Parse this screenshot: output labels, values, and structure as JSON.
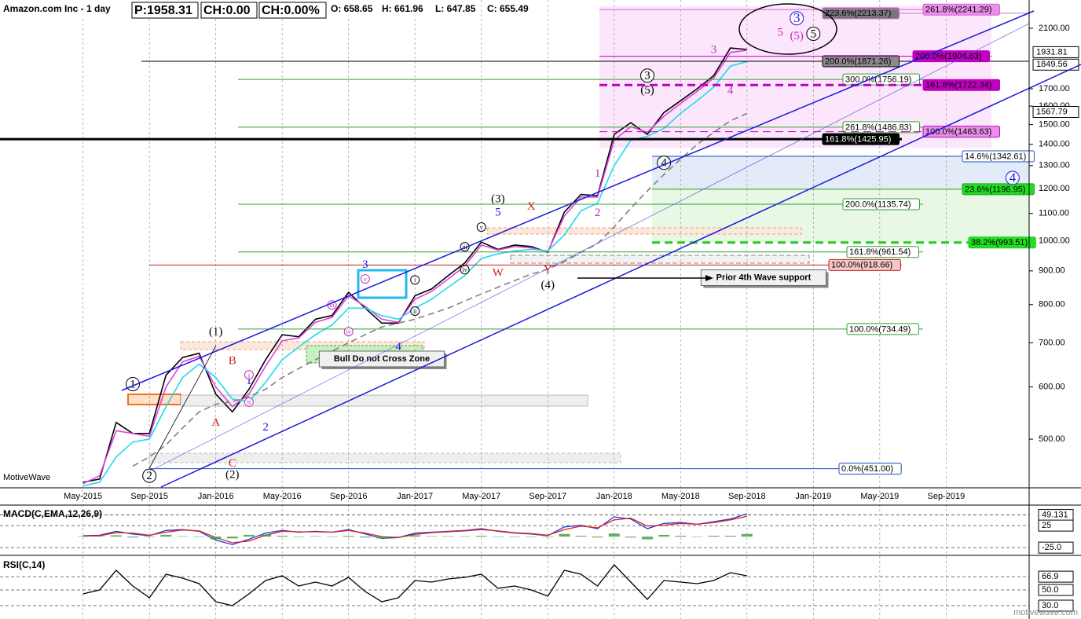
{
  "chart_data": [
    {
      "type": "line",
      "title": "Amazon.com Inc - 1 day",
      "price": "P:1958.31",
      "change": "CH:0.00",
      "change_pct": "CH:0.00%",
      "ohlc": [
        "O: 658.65",
        "H: 661.96",
        "L: 647.85",
        "C: 655.49"
      ],
      "watermark": "MotiveWave",
      "log": true,
      "grid": "x",
      "x": [
        "2015-05",
        "2015-06",
        "2015-07",
        "2015-08",
        "2015-09",
        "2015-10",
        "2015-11",
        "2015-12",
        "2016-01",
        "2016-02",
        "2016-03",
        "2016-04",
        "2016-05",
        "2016-06",
        "2016-07",
        "2016-08",
        "2016-09",
        "2016-10",
        "2016-11",
        "2016-12",
        "2017-01",
        "2017-02",
        "2017-03",
        "2017-04",
        "2017-05",
        "2017-06",
        "2017-07",
        "2017-08",
        "2017-09",
        "2017-10",
        "2017-11",
        "2017-12",
        "2018-01",
        "2018-02",
        "2018-03",
        "2018-04",
        "2018-05",
        "2018-06",
        "2018-07",
        "2018-08",
        "2018-09"
      ],
      "xlim": [
        "2014-12",
        "2020-02"
      ],
      "xticks": [
        {
          "value": "2015-05",
          "label": "May-2015"
        },
        {
          "value": "2015-09",
          "label": "Sep-2015"
        },
        {
          "value": "2016-01",
          "label": "Jan-2016"
        },
        {
          "value": "2016-05",
          "label": "May-2016"
        },
        {
          "value": "2016-09",
          "label": "Sep-2016"
        },
        {
          "value": "2017-01",
          "label": "Jan-2017"
        },
        {
          "value": "2017-05",
          "label": "May-2017"
        },
        {
          "value": "2017-09",
          "label": "Sep-2017"
        },
        {
          "value": "2018-01",
          "label": "Jan-2018"
        },
        {
          "value": "2018-05",
          "label": "May-2018"
        },
        {
          "value": "2018-09",
          "label": "Sep-2018"
        },
        {
          "value": "2019-01",
          "label": "Jan-2019"
        },
        {
          "value": "2019-05",
          "label": "May-2019"
        },
        {
          "value": "2019-09",
          "label": "Sep-2019"
        }
      ],
      "ylim": [
        423,
        2318
      ],
      "yticks": [
        {
          "value": 500,
          "label": "500.00"
        },
        {
          "value": 600,
          "label": "600.00"
        },
        {
          "value": 700,
          "label": "700.00"
        },
        {
          "value": 800,
          "label": "800.00"
        },
        {
          "value": 900,
          "label": "900.00"
        },
        {
          "value": 1000,
          "label": "1000.00"
        },
        {
          "value": 1100,
          "label": "1100.00"
        },
        {
          "value": 1200,
          "label": "1200.00"
        },
        {
          "value": 1300,
          "label": "1300.00"
        },
        {
          "value": 1400,
          "label": "1400.00"
        },
        {
          "value": 1500,
          "label": "1500.00"
        },
        {
          "value": 1600,
          "label": "1600.00"
        },
        {
          "value": 1700,
          "label": "1700.00"
        },
        {
          "value": 2100,
          "label": "2100.00"
        }
      ],
      "price_tags": [
        1931.81,
        1849.56,
        1567.79
      ],
      "series": [
        {
          "name": "price",
          "color": "#000000",
          "values": [
            430,
            435,
            530,
            510,
            510,
            625,
            665,
            675,
            585,
            550,
            595,
            660,
            720,
            715,
            760,
            770,
            835,
            790,
            750,
            750,
            825,
            845,
            885,
            925,
            995,
            970,
            985,
            980,
            960,
            1105,
            1175,
            1170,
            1450,
            1510,
            1450,
            1565,
            1630,
            1700,
            1780,
            1960,
            1950
          ]
        },
        {
          "name": "fast",
          "color": "#e040e0",
          "values": [
            428,
            440,
            515,
            510,
            505,
            600,
            655,
            668,
            600,
            560,
            585,
            645,
            705,
            712,
            752,
            765,
            825,
            795,
            760,
            752,
            815,
            838,
            875,
            915,
            985,
            968,
            980,
            975,
            962,
            1090,
            1165,
            1165,
            1420,
            1490,
            1460,
            1545,
            1615,
            1685,
            1765,
            1930,
            1945
          ]
        },
        {
          "name": "mid",
          "color": "#20d8f0",
          "values": [
            425,
            430,
            470,
            495,
            500,
            560,
            620,
            650,
            620,
            575,
            570,
            610,
            660,
            690,
            720,
            745,
            790,
            790,
            770,
            760,
            790,
            815,
            850,
            885,
            940,
            955,
            965,
            970,
            965,
            1020,
            1110,
            1140,
            1300,
            1420,
            1440,
            1480,
            1560,
            1630,
            1710,
            1840,
            1870
          ]
        },
        {
          "name": "slow",
          "color": "#808080",
          "dashed": true,
          "values": [
            null,
            null,
            null,
            455,
            470,
            490,
            520,
            550,
            565,
            570,
            580,
            595,
            620,
            640,
            660,
            680,
            700,
            720,
            740,
            750,
            760,
            775,
            790,
            810,
            830,
            850,
            870,
            890,
            905,
            930,
            960,
            990,
            1050,
            1120,
            1190,
            1260,
            1330,
            1400,
            1460,
            1520,
            1560
          ]
        }
      ],
      "fib_levels": [
        {
          "label": "223.6%(2213.37)",
          "value": 2213.37,
          "color": "#c080c0",
          "box": "#777777",
          "text_color": "#000000"
        },
        {
          "label": "261.8%(2241.29)",
          "value": 2241.29,
          "color": "#e060e0",
          "box": "#e890e8",
          "text_color": "#000000"
        },
        {
          "label": "200.0%(1871.26)",
          "value": 1871.26,
          "color": "#000000",
          "box": "#8a8a8a",
          "text_color": "#000000"
        },
        {
          "label": "200.0%(1904.63)",
          "value": 1904.63,
          "color": "#c000c0",
          "box": "#c000c0",
          "text_color": "#000000"
        },
        {
          "label": "300.0%(1756.19)",
          "value": 1756.19,
          "color": "#30a030",
          "box": "#ffffff",
          "text_color": "#000000"
        },
        {
          "label": "161.8%(1722.34)",
          "value": 1722.34,
          "color": "#c000c0",
          "box": "#c000c0",
          "text_color": "#000000",
          "dashed": true,
          "bold": true
        },
        {
          "label": "261.8%(1486.83)",
          "value": 1486.83,
          "color": "#30a030",
          "box": "#ffffff",
          "text_color": "#000000"
        },
        {
          "label": "100.0%(1463.63)",
          "value": 1463.63,
          "color": "#c000c0",
          "box": "#e890e8",
          "text_color": "#000000",
          "dashed": true
        },
        {
          "label": "161.8%(1425.95)",
          "value": 1425.95,
          "color": "#000000",
          "box": "#000000",
          "text_color": "#ffffff",
          "bold": true
        },
        {
          "label": "14.6%(1342.61)",
          "value": 1342.61,
          "color": "#2050c0",
          "box": "#ffffff",
          "text_color": "#000000"
        },
        {
          "label": "23.6%(1196.95)",
          "value": 1196.95,
          "color": "#20a020",
          "box": "#22dd22",
          "text_color": "#000000"
        },
        {
          "label": "200.0%(1135.74)",
          "value": 1135.74,
          "color": "#30a030",
          "box": "#ffffff",
          "text_color": "#000000"
        },
        {
          "label": "38.2%(993.51)",
          "value": 993.51,
          "color": "#22cc22",
          "box": "#22dd22",
          "text_color": "#000000",
          "dashed": true,
          "bold": true
        },
        {
          "label": "161.8%(961.54)",
          "value": 961.54,
          "color": "#30a030",
          "box": "#ffffff",
          "text_color": "#000000"
        },
        {
          "label": "100.0%(918.66)",
          "value": 918.66,
          "color": "#c02020",
          "box": "#f4c8c8",
          "text_color": "#000000"
        },
        {
          "label": "100.0%(734.49)",
          "value": 734.49,
          "color": "#30a030",
          "box": "#ffffff",
          "text_color": "#000000"
        },
        {
          "label": "0.0%(451.00)",
          "value": 451.0,
          "color": "#2050c0",
          "box": "#ffffff",
          "text_color": "#000000"
        }
      ],
      "annotations": [
        {
          "text": "1",
          "x": "2015-08",
          "y": 606,
          "color": "#000000",
          "circled": true
        },
        {
          "text": "2",
          "x": "2015-09",
          "y": 440,
          "color": "#000000",
          "circled": true
        },
        {
          "text": "(1)",
          "x": "2016-01",
          "y": 728,
          "color": "#000000"
        },
        {
          "text": "(2)",
          "x": "2016-02",
          "y": 442,
          "color": "#000000"
        },
        {
          "text": "B",
          "x": "2016-02",
          "y": 658,
          "color": "#d02020"
        },
        {
          "text": "A",
          "x": "2016-01",
          "y": 530,
          "color": "#d02020"
        },
        {
          "text": "C",
          "x": "2016-02",
          "y": 460,
          "color": "#d02020"
        },
        {
          "text": "1",
          "x": "2016-03",
          "y": 613,
          "color": "#1a1adc"
        },
        {
          "text": "2",
          "x": "2016-04",
          "y": 522,
          "color": "#1a1adc"
        },
        {
          "text": "3",
          "x": "2016-10",
          "y": 920,
          "color": "#1a1adc"
        },
        {
          "text": "4",
          "x": "2016-12",
          "y": 691,
          "color": "#1a1adc"
        },
        {
          "text": "(3)",
          "x": "2017-06",
          "y": 1158,
          "color": "#000000"
        },
        {
          "text": "5",
          "x": "2017-06",
          "y": 1105,
          "color": "#1a1adc"
        },
        {
          "text": "X",
          "x": "2017-08",
          "y": 1128,
          "color": "#d02020"
        },
        {
          "text": "W",
          "x": "2017-06",
          "y": 895,
          "color": "#d02020"
        },
        {
          "text": "Y",
          "x": "2017-09",
          "y": 904,
          "color": "#d02020"
        },
        {
          "text": "(4)",
          "x": "2017-09",
          "y": 857,
          "color": "#000000"
        },
        {
          "text": "1",
          "x": "2017-12",
          "y": 1265,
          "color": "#c030c0"
        },
        {
          "text": "2",
          "x": "2017-12",
          "y": 1103,
          "color": "#c030c0"
        },
        {
          "text": "3",
          "x": "2018-03",
          "y": 1780,
          "color": "#000000",
          "circled": true
        },
        {
          "text": "(5)",
          "x": "2018-03",
          "y": 1692,
          "color": "#000000"
        },
        {
          "text": "4",
          "x": "2018-04",
          "y": 1313,
          "color": "#000000",
          "circled": true
        },
        {
          "text": "3",
          "x": "2018-07",
          "y": 1950,
          "color": "#c030c0"
        },
        {
          "text": "4",
          "x": "2018-08",
          "y": 1690,
          "color": "#c030c0"
        },
        {
          "text": "5",
          "x": "2018-11",
          "y": 2070,
          "color": "#c030c0"
        },
        {
          "text": "(5)",
          "x": "2018-12",
          "y": 2047,
          "color": "#c030c0"
        },
        {
          "text": "5",
          "x": "2019-01",
          "y": 2060,
          "color": "#000000",
          "circled": true
        },
        {
          "text": "3",
          "x": "2018-12",
          "y": 2175,
          "color": "#1a1adc",
          "circled": true
        },
        {
          "text": "4",
          "x": "2020-01",
          "y": 1245,
          "color": "#1a1adc",
          "circled": true
        },
        {
          "text": "i",
          "x": "2016-03",
          "y": 626,
          "color": "#c030c0",
          "circled": true,
          "small": true
        },
        {
          "text": "ii",
          "x": "2016-03",
          "y": 569,
          "color": "#c030c0",
          "circled": true,
          "small": true
        },
        {
          "text": "iii",
          "x": "2016-08",
          "y": 799,
          "color": "#c030c0",
          "circled": true,
          "small": true
        },
        {
          "text": "iv",
          "x": "2016-09",
          "y": 728,
          "color": "#c030c0",
          "circled": true,
          "small": true
        },
        {
          "text": "v",
          "x": "2016-10",
          "y": 875,
          "color": "#c030c0",
          "circled": true,
          "small": true
        },
        {
          "text": "i",
          "x": "2017-01",
          "y": 872,
          "color": "#000000",
          "circled": true,
          "small": true
        },
        {
          "text": "ii",
          "x": "2017-01",
          "y": 782,
          "color": "#000000",
          "circled": true,
          "small": true
        },
        {
          "text": "iii",
          "x": "2017-04",
          "y": 979,
          "color": "#000000",
          "circled": true,
          "small": true
        },
        {
          "text": "iv",
          "x": "2017-04",
          "y": 904,
          "color": "#000000",
          "circled": true,
          "small": true
        },
        {
          "text": "v",
          "x": "2017-05",
          "y": 1049,
          "color": "#000000",
          "circled": true,
          "small": true
        },
        {
          "text": "Bull Do not Cross Zone",
          "x": "2016-11",
          "y": 658,
          "color": "#000000",
          "boxed": true
        },
        {
          "text": "Prior 4th Wave support",
          "x": "2018-10",
          "y": 874,
          "color": "#000000",
          "boxed": true
        }
      ]
    },
    {
      "type": "line",
      "title": "MACD(C,EMA,12,26,9)",
      "ylim": [
        -39,
        68
      ],
      "yticks": [
        49.131,
        25,
        {
          "value": -25,
          "label": "-25.0"
        }
      ],
      "series": [
        {
          "name": "macd",
          "color": "#1a3ae0",
          "values": [
            2,
            3,
            12,
            6,
            2,
            14,
            16,
            12,
            -8,
            -18,
            -6,
            8,
            14,
            10,
            12,
            10,
            16,
            6,
            -4,
            -2,
            8,
            10,
            12,
            14,
            18,
            12,
            8,
            6,
            2,
            22,
            26,
            18,
            45,
            40,
            18,
            30,
            32,
            28,
            34,
            40,
            52
          ]
        },
        {
          "name": "signal",
          "color": "#e02020",
          "values": [
            1,
            2,
            9,
            8,
            3,
            10,
            15,
            13,
            -2,
            -14,
            -10,
            3,
            12,
            11,
            11,
            10,
            14,
            8,
            0,
            -2,
            5,
            9,
            11,
            13,
            16,
            13,
            9,
            7,
            3,
            16,
            24,
            20,
            38,
            42,
            24,
            26,
            30,
            28,
            32,
            38,
            46
          ]
        },
        {
          "name": "histogram",
          "color": "#3c9a3c",
          "kind": "histogram",
          "values": [
            1,
            1,
            3,
            -2,
            -1,
            4,
            1,
            -1,
            -6,
            -4,
            4,
            5,
            2,
            -1,
            1,
            0,
            2,
            -2,
            -4,
            0,
            3,
            1,
            1,
            1,
            2,
            -1,
            -1,
            -1,
            -1,
            6,
            2,
            -2,
            7,
            -2,
            -6,
            4,
            2,
            0,
            2,
            2,
            6
          ]
        }
      ]
    },
    {
      "type": "line",
      "title": "RSI(C,14)",
      "ylim": [
        21,
        91
      ],
      "yticks": [
        66.9,
        {
          "value": 50,
          "label": "50.0"
        },
        {
          "value": 30,
          "label": "30.0"
        }
      ],
      "series": [
        {
          "name": "rsi",
          "color": "#000000",
          "values": [
            45,
            50,
            75,
            55,
            40,
            70,
            65,
            58,
            35,
            30,
            45,
            62,
            68,
            55,
            60,
            55,
            66,
            48,
            35,
            40,
            62,
            60,
            64,
            66,
            70,
            52,
            55,
            50,
            42,
            75,
            70,
            55,
            82,
            60,
            38,
            62,
            60,
            58,
            62,
            72,
            68
          ]
        }
      ]
    }
  ],
  "footer": "motivewave.com"
}
